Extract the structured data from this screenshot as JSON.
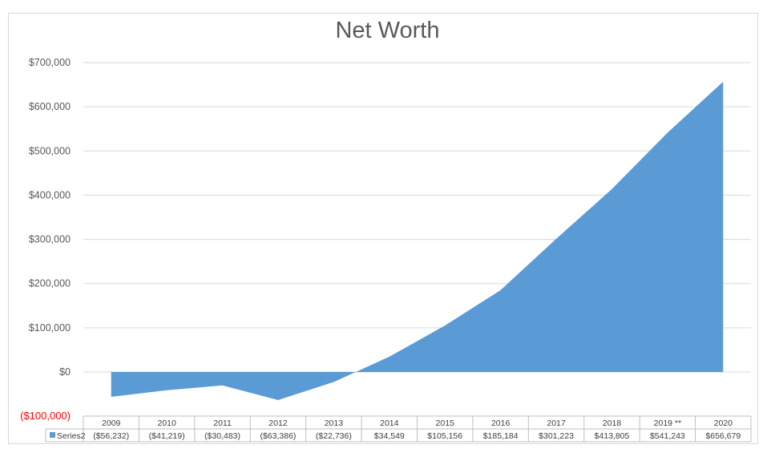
{
  "chart_data": {
    "type": "area",
    "title": "Net Worth",
    "categories": [
      "2009",
      "2010",
      "2011",
      "2012",
      "2013",
      "2014",
      "2015",
      "2016",
      "2017",
      "2018",
      "2019 **",
      "2020"
    ],
    "series": [
      {
        "name": "Series2",
        "values": [
          -56232,
          -41219,
          -30483,
          -63386,
          -22736,
          34549,
          105156,
          185184,
          301223,
          413805,
          541243,
          656679
        ],
        "labels": [
          "($56,232)",
          "($41,219)",
          "($30,483)",
          "($63,386)",
          "($22,736)",
          "$34,549",
          "$105,156",
          "$185,184",
          "$301,223",
          "$413,805",
          "$541,243",
          "$656,679"
        ],
        "color": "#5b9bd5"
      }
    ],
    "yticks": [
      "($100,000)",
      "$0",
      "$100,000",
      "$200,000",
      "$300,000",
      "$400,000",
      "$500,000",
      "$600,000",
      "$700,000"
    ],
    "ylim": [
      -100000,
      700000
    ],
    "negative_tick_color": "#ff0000",
    "grid": true,
    "legend": "data-table"
  }
}
